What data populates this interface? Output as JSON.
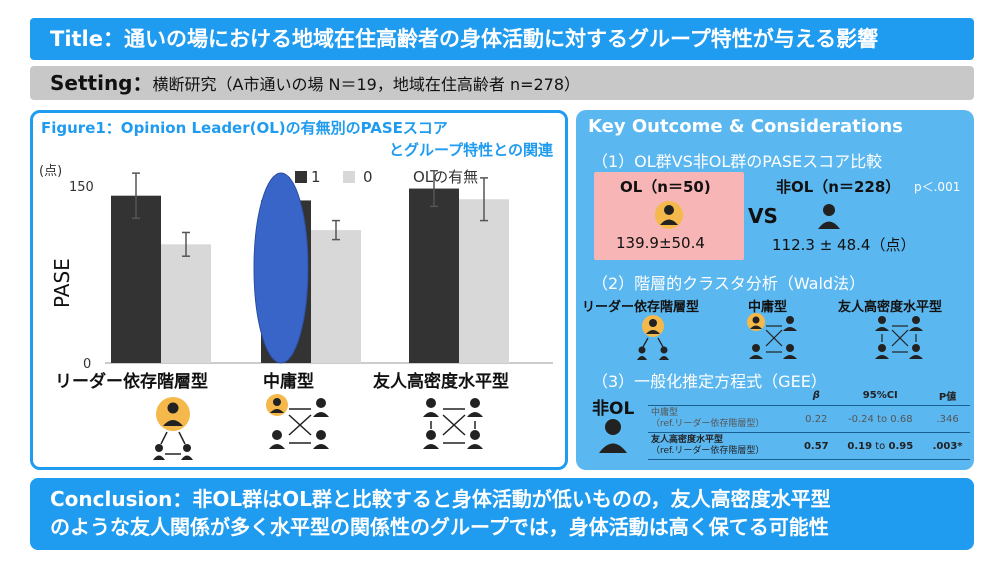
{
  "title": {
    "label": "Title：",
    "text": "通いの場における地域在住高齢者の身体活動に対するグループ特性が与える影響"
  },
  "setting": {
    "label": "Setting：",
    "text": "横断研究（A市通いの場 N＝19，地域在住高齢者 n=278）"
  },
  "figure": {
    "title_line1": "Figure1：Opinion Leader(OL)の有無別のPASEスコア",
    "title_line2": "とグループ特性との関連",
    "unit_label": "(点)",
    "categories": [
      "リーダー依存階層型",
      "中庸型",
      "友人高密度水平型"
    ]
  },
  "chart_data": {
    "type": "bar",
    "title": "Opinion Leader(OL)の有無別のPASEスコアとグループ特性との関連",
    "xlabel": "",
    "ylabel": "PASE",
    "ylim": [
      0,
      150
    ],
    "yticks": [
      "0",
      "150"
    ],
    "categories": [
      "リーダー依存階層型",
      "中庸型",
      "友人高密度水平型"
    ],
    "legend_title": "OLの有無",
    "legend_position": "top-right",
    "series": [
      {
        "name": "1",
        "color": "#333333",
        "values": [
          141,
          137,
          147
        ],
        "error": [
          19,
          19,
          15
        ]
      },
      {
        "name": "0",
        "color": "#d8d8d8",
        "values": [
          100,
          112,
          138
        ],
        "error": [
          10,
          8,
          18
        ]
      }
    ],
    "annotation": {
      "shape": "ellipse",
      "color": "#3a65c8",
      "category": "中庸型"
    },
    "grid": false
  },
  "key": {
    "title": "Key Outcome & Considerations",
    "sec1": "（1）OL群VS非OL群のPASEスコア比較",
    "ol_head": "OL（n＝50)",
    "ol_score": "139.9±50.4",
    "vs": "VS",
    "nonol_head": "非OL（n＝228）",
    "pval": "p＜.001",
    "nonol_score": "112.3 ± 48.4（点）",
    "sec2": "（2）階層的クラスタ分析（Wald法）",
    "clusters": [
      "リーダー依存階層型",
      "中庸型",
      "友人高密度水平型"
    ],
    "sec3": "（3）一般化推定方程式（GEE）",
    "gee_group_label": "非OL",
    "gee_headers": [
      "",
      "β",
      "95%CI",
      "P値"
    ],
    "gee_rows": [
      {
        "name1": "中庸型",
        "name2": "（ref.リーダー依存階層型）",
        "beta": "0.22",
        "ci_low": "-0.24",
        "ci_to": "to",
        "ci_high": "0.68",
        "p": ".346"
      },
      {
        "name1": "友人高密度水平型",
        "name2": "（ref.リーダー依存階層型）",
        "beta": "0.57",
        "ci_low": "0.19",
        "ci_to": "to",
        "ci_high": "0.95",
        "p": ".003*"
      }
    ]
  },
  "conclusion": {
    "label": "Conclusion：",
    "line1": "非OL群はOL群と比較すると身体活動が低いものの，友人高密度水平型",
    "line2": "のような友人関係が多く水平型の関係性のグループでは，身体活動は高く保てる可能性"
  },
  "colors": {
    "accent": "#1f9bef",
    "panel": "#5bb7f0",
    "ol_box": "#f7b5b5",
    "leader_face": "#f5b84a",
    "dark": "#222222"
  }
}
